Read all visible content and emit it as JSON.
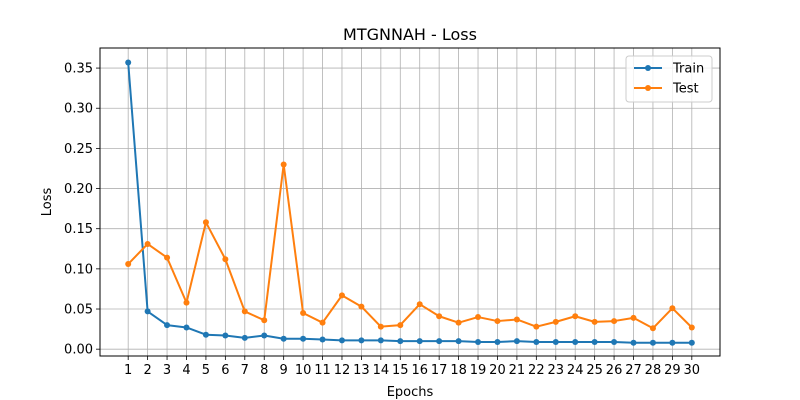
{
  "chart_data": {
    "type": "line",
    "title": "MTGNNAH - Loss",
    "xlabel": "Epochs",
    "ylabel": "Loss",
    "x": [
      1,
      2,
      3,
      4,
      5,
      6,
      7,
      8,
      9,
      10,
      11,
      12,
      13,
      14,
      15,
      16,
      17,
      18,
      19,
      20,
      21,
      22,
      23,
      24,
      25,
      26,
      27,
      28,
      29,
      30
    ],
    "ylim": [
      -0.0085,
      0.375
    ],
    "yticks": [
      0.0,
      0.05,
      0.1,
      0.15,
      0.2,
      0.25,
      0.3,
      0.35
    ],
    "grid": true,
    "legend_position": "top-right",
    "series": [
      {
        "name": "Train",
        "color": "#1f77b4",
        "values": [
          0.357,
          0.047,
          0.03,
          0.027,
          0.018,
          0.017,
          0.014,
          0.017,
          0.013,
          0.013,
          0.012,
          0.011,
          0.011,
          0.011,
          0.01,
          0.01,
          0.01,
          0.01,
          0.009,
          0.009,
          0.01,
          0.009,
          0.009,
          0.009,
          0.009,
          0.009,
          0.008,
          0.008,
          0.008,
          0.008
        ]
      },
      {
        "name": "Test",
        "color": "#ff7f0e",
        "values": [
          0.106,
          0.131,
          0.114,
          0.058,
          0.158,
          0.112,
          0.047,
          0.036,
          0.23,
          0.045,
          0.033,
          0.067,
          0.053,
          0.028,
          0.03,
          0.056,
          0.041,
          0.033,
          0.04,
          0.035,
          0.037,
          0.028,
          0.034,
          0.041,
          0.034,
          0.035,
          0.039,
          0.026,
          0.051,
          0.027
        ]
      }
    ]
  }
}
